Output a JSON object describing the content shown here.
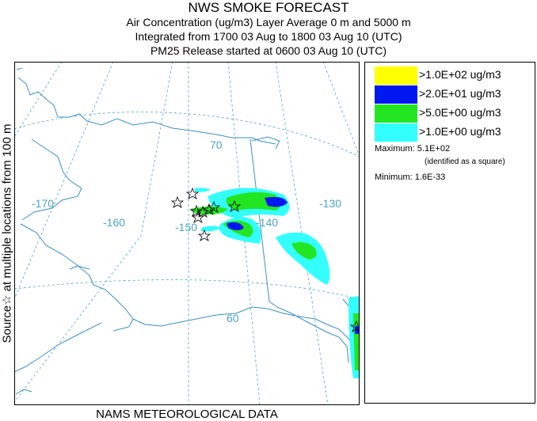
{
  "header": {
    "title": "NWS SMOKE FORECAST",
    "line1": "Air Concentration (ug/m3) Layer Average    0 m and  5000 m",
    "line2": "Integrated from 1700 03 Aug to 1800 03 Aug 10 (UTC)",
    "line3": "PM25 Release started at 0600 03 Aug 10 (UTC)"
  },
  "side_label": "Source☆ at multiple locations  from  100 m",
  "footer": "NAMS METEOROLOGICAL DATA",
  "map": {
    "longitude_labels": [
      "-170",
      "-160",
      "-150",
      "-140",
      "-130"
    ],
    "latitude_labels": [
      "70",
      "60"
    ],
    "colors": {
      "graticule": "#4da3c8",
      "coast": "#3a8fc0",
      "border": "#000000"
    }
  },
  "legend": {
    "items": [
      {
        "label": ">1.0E+02 ug/m3",
        "color": "#ffff00"
      },
      {
        "label": ">2.0E+01 ug/m3",
        "color": "#0018f0"
      },
      {
        "label": ">5.0E+00 ug/m3",
        "color": "#22e622"
      },
      {
        "label": ">1.0E+00 ug/m3",
        "color": "#33ffff"
      }
    ],
    "maximum": "Maximum: 5.1E+02",
    "maximum_note": "(identified as a square)",
    "minimum": "Minimum: 1.6E-33"
  }
}
